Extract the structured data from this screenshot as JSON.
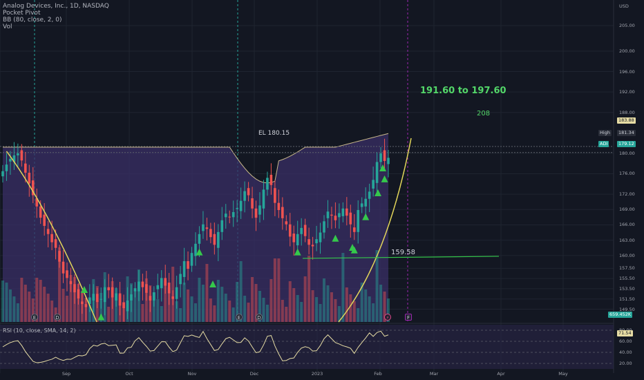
{
  "legend": {
    "symbol_line": "Analog Devices, Inc., 1D, NASDAQ",
    "indicator_1": "Pocket Pivot",
    "indicator_2": "BB (80, close, 2, 0)",
    "indicator_3": "Vol"
  },
  "annotations": {
    "el_label": "EL 180.15",
    "target_range": "191.60 to 197.60",
    "target_208": "208",
    "support_label": "159.58"
  },
  "price_axis": {
    "currency": "USD",
    "ticks": [
      "205.00",
      "200.00",
      "196.00",
      "192.00",
      "188.00",
      "180.00",
      "176.00",
      "172.00",
      "169.00",
      "166.00",
      "163.00",
      "160.00",
      "157.50",
      "155.50",
      "153.50",
      "151.50",
      "149.50"
    ]
  },
  "price_badges": {
    "upper_band": "183.88",
    "high_label": "High",
    "high_value": "181.34",
    "symbol_label": "ADI",
    "last_price": "179.12",
    "volume": "659.452K"
  },
  "rsi_panel": {
    "label": "RSI (10, close, SMA, 14, 2)",
    "ticks": [
      "80.00",
      "60.00",
      "40.00",
      "20.00"
    ],
    "value": "71.54"
  },
  "time_axis": {
    "labels": [
      "Sep",
      "Oct",
      "Nov",
      "Dec",
      "2023",
      "Feb",
      "Mar",
      "Apr",
      "May"
    ]
  },
  "events": [
    {
      "type": "E"
    },
    {
      "type": "D"
    },
    {
      "type": "E"
    },
    {
      "type": "D"
    },
    {
      "type": "split"
    },
    {
      "type": "F"
    }
  ],
  "colors": {
    "background": "#131722",
    "up": "#26a69a",
    "down": "#ef5350",
    "band_fill": "#3a2f66",
    "band_line": "#c9b98a",
    "trendline": "#e3d65a",
    "target_text": "#53d769",
    "pocket_pivot": "#35c84b",
    "support_line": "#35c84b"
  },
  "chart_data": {
    "type": "candlestick",
    "title": "Analog Devices, Inc., 1D, NASDAQ",
    "yrange": [
      147,
      210
    ],
    "rsi_range": [
      10,
      90
    ],
    "x_range_days": [
      "2022-08-12",
      "2023-05-22"
    ],
    "closes": [
      176.5,
      177.8,
      178.9,
      179.6,
      180.0,
      178.6,
      176.2,
      174.1,
      171.8,
      169.6,
      167.4,
      165.8,
      164.2,
      162.6,
      161.5,
      158.8,
      156.5,
      155.6,
      154.4,
      152.8,
      151.6,
      150.5,
      149.9,
      151.8,
      152.5,
      150.9,
      151.5,
      153.8,
      153.2,
      151.8,
      152.6,
      150.2,
      149.7,
      151.2,
      152.4,
      153.6,
      154.9,
      153.8,
      152.7,
      151.2,
      152.8,
      154.2,
      155.6,
      154.1,
      152.6,
      151.5,
      153.8,
      156.4,
      158.9,
      157.4,
      160.5,
      162.3,
      164.2,
      166.1,
      165.2,
      163.6,
      162.1,
      164.6,
      166.9,
      168.2,
      167.5,
      168.5,
      169.3,
      170.7,
      172.6,
      171.8,
      169.2,
      167.4,
      169.8,
      172.9,
      175.2,
      173.8,
      170.3,
      168.9,
      167.3,
      166.1,
      163.7,
      162.6,
      164.2,
      165.4,
      163.8,
      162.1,
      161.8,
      163.2,
      164.5,
      166.7,
      168.6,
      167.8,
      166.9,
      168.3,
      169.2,
      167.8,
      166.1,
      164.6,
      168.9,
      170.2,
      171.1,
      172.5,
      174.8,
      178.3,
      180.0,
      178.5,
      179.12
    ],
    "pocket_pivot_closes_index": [
      26,
      52,
      78,
      88,
      93,
      96,
      101
    ],
    "upper_band_end": 183.88,
    "el_level": 180.15,
    "support_level": 159.58,
    "rsi_last": 71.54
  }
}
